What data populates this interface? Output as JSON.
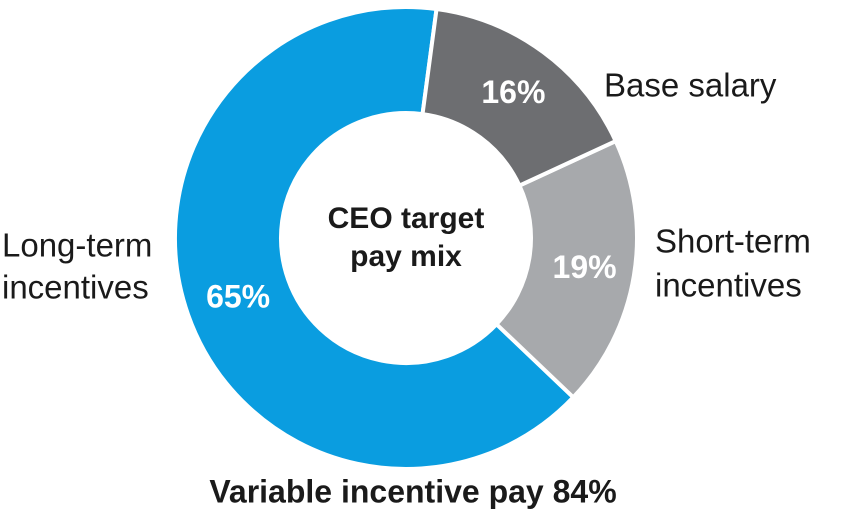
{
  "chart_data": {
    "type": "donut",
    "center_label": [
      "CEO target",
      "pay mix"
    ],
    "footer": "Variable incentive pay 84%",
    "categories": [
      [
        "Base salary"
      ],
      [
        "Short-term",
        "incentives"
      ],
      [
        "Long-term",
        "incentives"
      ]
    ],
    "values": [
      16,
      19,
      65
    ],
    "value_labels": [
      "16%",
      "19%",
      "65%"
    ],
    "colors": [
      "#6d6e71",
      "#a7a9ac",
      "#0a9de0"
    ],
    "value_label_colors": [
      "#ffffff",
      "#ffffff",
      "#ffffff"
    ]
  }
}
